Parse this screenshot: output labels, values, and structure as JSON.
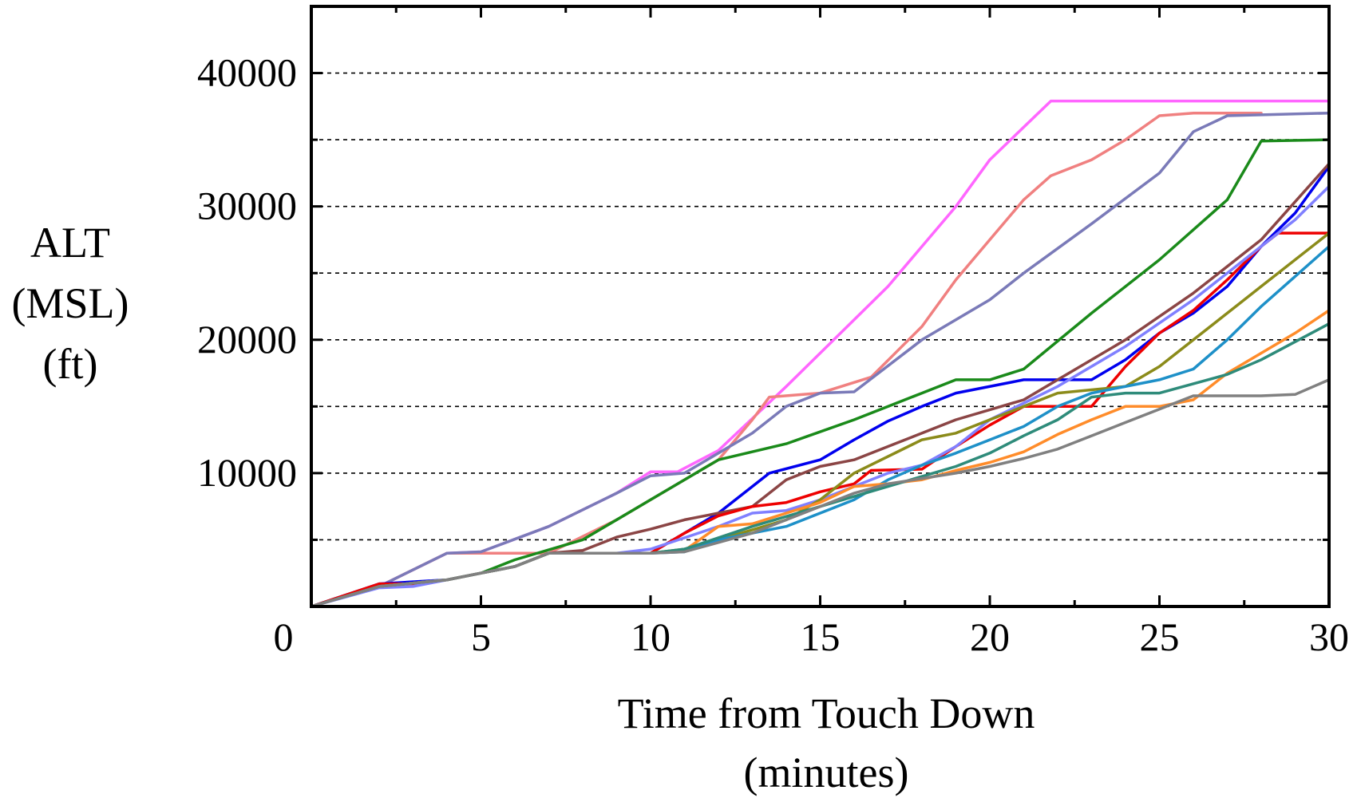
{
  "chart_data": {
    "type": "line",
    "title": "",
    "xlabel_lines": [
      "Time from Touch Down",
      "(minutes)"
    ],
    "ylabel_lines": [
      "ALT",
      "(MSL)",
      "(ft)"
    ],
    "xlim": [
      0,
      30
    ],
    "ylim": [
      0,
      40000
    ],
    "x_ticks": [
      0,
      5,
      10,
      15,
      20,
      25,
      30
    ],
    "x_tick_labels": [
      "0",
      "5",
      "10",
      "15",
      "20",
      "25",
      "30"
    ],
    "y_ticks": [
      10000,
      20000,
      30000,
      40000
    ],
    "y_tick_labels": [
      "10000",
      "20000",
      "30000",
      "40000"
    ],
    "y_gridlines": [
      5000,
      10000,
      15000,
      20000,
      25000,
      30000,
      35000,
      40000
    ],
    "grid": true,
    "legend": "none",
    "series": [
      {
        "color": "#ff66ff",
        "points": [
          [
            0,
            0
          ],
          [
            2,
            1500
          ],
          [
            4,
            4000
          ],
          [
            5,
            4100
          ],
          [
            7,
            6000
          ],
          [
            9,
            8500
          ],
          [
            10,
            10100
          ],
          [
            10.8,
            10100
          ],
          [
            12,
            11700
          ],
          [
            14,
            16500
          ],
          [
            15,
            19000
          ],
          [
            17,
            24000
          ],
          [
            19,
            30000
          ],
          [
            20,
            33500
          ],
          [
            21.8,
            37900
          ],
          [
            30,
            37900
          ]
        ]
      },
      {
        "color": "#f08080",
        "points": [
          [
            0,
            0
          ],
          [
            2,
            1500
          ],
          [
            4,
            4000
          ],
          [
            5,
            4000
          ],
          [
            7,
            4000
          ],
          [
            9,
            6500
          ],
          [
            11,
            9500
          ],
          [
            12,
            11000
          ],
          [
            13,
            14000
          ],
          [
            13.5,
            15700
          ],
          [
            15,
            16000
          ],
          [
            16.5,
            17200
          ],
          [
            18,
            21000
          ],
          [
            19,
            24500
          ],
          [
            20,
            27500
          ],
          [
            21,
            30500
          ],
          [
            21.8,
            32300
          ],
          [
            23,
            33500
          ],
          [
            24,
            35000
          ],
          [
            25,
            36800
          ],
          [
            26,
            37000
          ],
          [
            28,
            37000
          ]
        ]
      },
      {
        "color": "#7a7ab8",
        "points": [
          [
            0,
            0
          ],
          [
            2,
            1500
          ],
          [
            4,
            4000
          ],
          [
            5,
            4100
          ],
          [
            7,
            6000
          ],
          [
            9,
            8500
          ],
          [
            10,
            9800
          ],
          [
            11,
            10000
          ],
          [
            13,
            13000
          ],
          [
            14,
            15000
          ],
          [
            15,
            16000
          ],
          [
            16,
            16100
          ],
          [
            18,
            20000
          ],
          [
            20,
            23000
          ],
          [
            21,
            25000
          ],
          [
            23,
            28700
          ],
          [
            25,
            32500
          ],
          [
            26,
            35600
          ],
          [
            27,
            36800
          ],
          [
            30,
            37000
          ]
        ]
      },
      {
        "color": "#1a8a1a",
        "points": [
          [
            0,
            0
          ],
          [
            2,
            1500
          ],
          [
            4,
            2000
          ],
          [
            5,
            2500
          ],
          [
            6,
            3500
          ],
          [
            8,
            5000
          ],
          [
            10,
            8000
          ],
          [
            11,
            9500
          ],
          [
            12,
            11000
          ],
          [
            14,
            12200
          ],
          [
            16,
            14000
          ],
          [
            18,
            16000
          ],
          [
            19,
            17000
          ],
          [
            20,
            17000
          ],
          [
            21,
            17800
          ],
          [
            23,
            22000
          ],
          [
            25,
            26000
          ],
          [
            27,
            30500
          ],
          [
            28,
            34900
          ],
          [
            30,
            35000
          ]
        ]
      },
      {
        "color": "#0000ee",
        "points": [
          [
            0,
            0
          ],
          [
            2,
            1700
          ],
          [
            4,
            2000
          ],
          [
            5,
            2500
          ],
          [
            6,
            3000
          ],
          [
            7,
            4000
          ],
          [
            10,
            4000
          ],
          [
            11,
            5500
          ],
          [
            12,
            7000
          ],
          [
            13,
            9000
          ],
          [
            13.5,
            10000
          ],
          [
            15,
            11000
          ],
          [
            16,
            12500
          ],
          [
            17,
            13900
          ],
          [
            18,
            15000
          ],
          [
            19,
            16000
          ],
          [
            21,
            17000
          ],
          [
            23,
            17000
          ],
          [
            24,
            18500
          ],
          [
            25,
            20500
          ],
          [
            26,
            22000
          ],
          [
            27,
            24000
          ],
          [
            28,
            27000
          ],
          [
            29,
            29500
          ],
          [
            30,
            33000
          ]
        ]
      },
      {
        "color": "#8b4545",
        "points": [
          [
            0,
            0
          ],
          [
            2,
            1500
          ],
          [
            4,
            2000
          ],
          [
            5,
            2500
          ],
          [
            6,
            3000
          ],
          [
            7,
            4000
          ],
          [
            8,
            4200
          ],
          [
            9,
            5200
          ],
          [
            10,
            5800
          ],
          [
            11,
            6500
          ],
          [
            12,
            7000
          ],
          [
            13,
            7500
          ],
          [
            14,
            9500
          ],
          [
            15,
            10500
          ],
          [
            16,
            11000
          ],
          [
            17,
            12000
          ],
          [
            19,
            14000
          ],
          [
            21,
            15500
          ],
          [
            22,
            17000
          ],
          [
            24,
            20000
          ],
          [
            26,
            23500
          ],
          [
            28,
            27500
          ],
          [
            30,
            33200
          ]
        ]
      },
      {
        "color": "#ee0000",
        "points": [
          [
            0,
            0
          ],
          [
            2,
            1700
          ],
          [
            3,
            1700
          ],
          [
            4,
            2000
          ],
          [
            5,
            2500
          ],
          [
            6,
            3000
          ],
          [
            7,
            4000
          ],
          [
            8,
            4000
          ],
          [
            10,
            4000
          ],
          [
            11,
            5500
          ],
          [
            12,
            6800
          ],
          [
            13,
            7500
          ],
          [
            14,
            7800
          ],
          [
            15,
            8600
          ],
          [
            16,
            9200
          ],
          [
            16.5,
            10200
          ],
          [
            18,
            10300
          ],
          [
            19,
            12000
          ],
          [
            20,
            13600
          ],
          [
            21,
            15000
          ],
          [
            23,
            15000
          ],
          [
            24,
            18000
          ],
          [
            25,
            20500
          ],
          [
            26,
            22200
          ],
          [
            27,
            24500
          ],
          [
            28,
            27000
          ],
          [
            28.5,
            28000
          ],
          [
            30,
            28000
          ]
        ]
      },
      {
        "color": "#8080ff",
        "points": [
          [
            0,
            0
          ],
          [
            2,
            1400
          ],
          [
            3,
            1500
          ],
          [
            4,
            2000
          ],
          [
            5,
            2500
          ],
          [
            6,
            3000
          ],
          [
            7,
            4000
          ],
          [
            9,
            4000
          ],
          [
            10,
            4300
          ],
          [
            12,
            6000
          ],
          [
            13,
            7000
          ],
          [
            14,
            7200
          ],
          [
            15,
            8000
          ],
          [
            17,
            10000
          ],
          [
            18,
            10600
          ],
          [
            19,
            12000
          ],
          [
            20,
            14000
          ],
          [
            22,
            16500
          ],
          [
            24,
            19500
          ],
          [
            26,
            23000
          ],
          [
            28,
            27000
          ],
          [
            29,
            29000
          ],
          [
            30,
            31500
          ]
        ]
      },
      {
        "color": "#8b8b1a",
        "points": [
          [
            0,
            0
          ],
          [
            2,
            1500
          ],
          [
            4,
            2000
          ],
          [
            5,
            2500
          ],
          [
            6,
            3000
          ],
          [
            7,
            4000
          ],
          [
            10,
            4000
          ],
          [
            11,
            4300
          ],
          [
            12,
            5000
          ],
          [
            14,
            6500
          ],
          [
            15,
            8000
          ],
          [
            16,
            10000
          ],
          [
            18,
            12500
          ],
          [
            19,
            13000
          ],
          [
            20,
            14000
          ],
          [
            21,
            15000
          ],
          [
            22,
            16000
          ],
          [
            24,
            16500
          ],
          [
            25,
            18000
          ],
          [
            27,
            22000
          ],
          [
            28,
            24000
          ],
          [
            30,
            28000
          ]
        ]
      },
      {
        "color": "#1e90c8",
        "points": [
          [
            0,
            0
          ],
          [
            2,
            1500
          ],
          [
            4,
            2000
          ],
          [
            5,
            2500
          ],
          [
            6,
            3000
          ],
          [
            7,
            4000
          ],
          [
            10,
            4000
          ],
          [
            11,
            4100
          ],
          [
            12,
            5000
          ],
          [
            14,
            6000
          ],
          [
            15,
            7000
          ],
          [
            16,
            8000
          ],
          [
            17,
            9500
          ],
          [
            18,
            10600
          ],
          [
            19,
            11500
          ],
          [
            20,
            12500
          ],
          [
            21,
            13500
          ],
          [
            22,
            15000
          ],
          [
            23,
            16000
          ],
          [
            25,
            17000
          ],
          [
            26,
            17800
          ],
          [
            27,
            20000
          ],
          [
            28,
            22500
          ],
          [
            30,
            27000
          ]
        ]
      },
      {
        "color": "#ff8c2a",
        "points": [
          [
            0,
            0
          ],
          [
            2,
            1500
          ],
          [
            4,
            2000
          ],
          [
            5,
            2500
          ],
          [
            6,
            3000
          ],
          [
            7,
            4000
          ],
          [
            10,
            4000
          ],
          [
            11,
            4200
          ],
          [
            12,
            6000
          ],
          [
            13,
            6200
          ],
          [
            14,
            7000
          ],
          [
            15,
            7800
          ],
          [
            16,
            9000
          ],
          [
            17,
            9200
          ],
          [
            18,
            9500
          ],
          [
            19,
            10200
          ],
          [
            20,
            10800
          ],
          [
            21,
            11600
          ],
          [
            22,
            12900
          ],
          [
            23,
            14000
          ],
          [
            24,
            15000
          ],
          [
            25,
            15000
          ],
          [
            26,
            15500
          ],
          [
            27,
            17500
          ],
          [
            28,
            19000
          ],
          [
            29,
            20500
          ],
          [
            30,
            22200
          ]
        ]
      },
      {
        "color": "#2e8b7a",
        "points": [
          [
            0,
            0
          ],
          [
            2,
            1500
          ],
          [
            4,
            2000
          ],
          [
            5,
            2500
          ],
          [
            6,
            3000
          ],
          [
            7,
            4000
          ],
          [
            10,
            4000
          ],
          [
            11,
            4300
          ],
          [
            13,
            6000
          ],
          [
            15,
            7500
          ],
          [
            17,
            9000
          ],
          [
            19,
            10500
          ],
          [
            20,
            11500
          ],
          [
            21,
            12800
          ],
          [
            22,
            14000
          ],
          [
            23,
            15700
          ],
          [
            24,
            16000
          ],
          [
            25,
            16000
          ],
          [
            27,
            17400
          ],
          [
            28,
            18500
          ],
          [
            30,
            21200
          ]
        ]
      },
      {
        "color": "#808080",
        "points": [
          [
            0,
            0
          ],
          [
            2,
            1500
          ],
          [
            4,
            2000
          ],
          [
            5,
            2500
          ],
          [
            6,
            3000
          ],
          [
            7,
            4000
          ],
          [
            10,
            4000
          ],
          [
            11,
            4100
          ],
          [
            12,
            4800
          ],
          [
            13,
            5500
          ],
          [
            14,
            6500
          ],
          [
            15,
            7500
          ],
          [
            16,
            8500
          ],
          [
            17,
            9200
          ],
          [
            18,
            9600
          ],
          [
            19,
            10000
          ],
          [
            20,
            10500
          ],
          [
            21,
            11100
          ],
          [
            22,
            11800
          ],
          [
            23,
            12800
          ],
          [
            24,
            13800
          ],
          [
            25,
            14800
          ],
          [
            26,
            15800
          ],
          [
            28,
            15800
          ],
          [
            29,
            15900
          ],
          [
            30,
            17000
          ]
        ]
      }
    ]
  }
}
